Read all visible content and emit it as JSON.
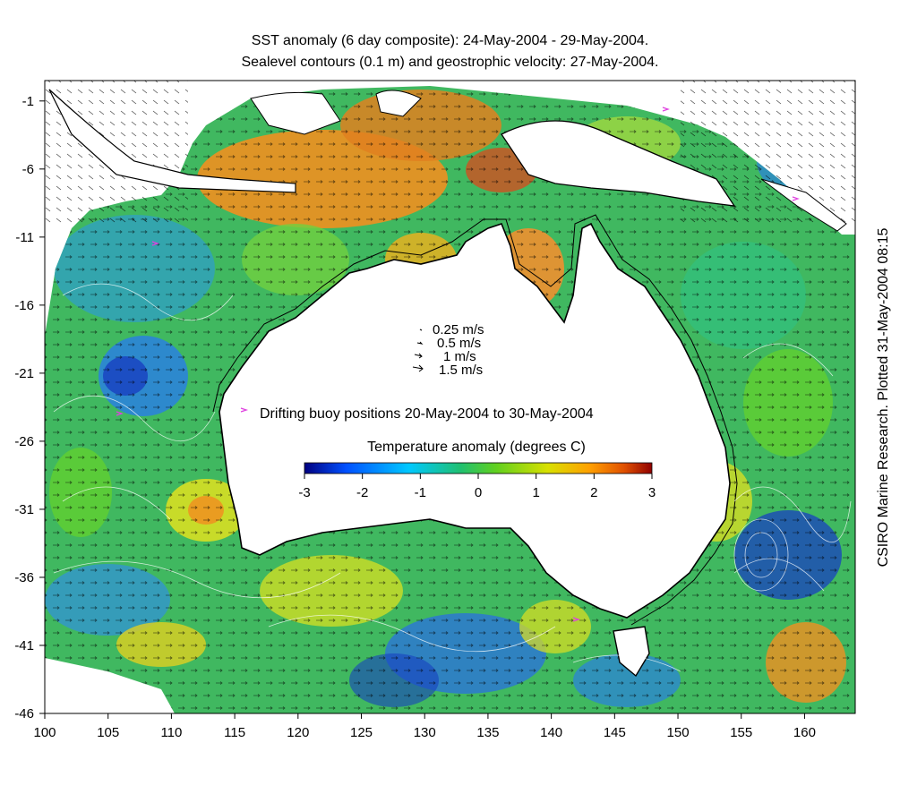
{
  "title_line1": "SST anomaly (6 day composite): 24-May-2004 - 29-May-2004.",
  "title_line2": "Sealevel contours (0.1 m) and geostrophic velocity: 27-May-2004.",
  "side_credit": "CSIRO Marine Research. Plotted 31-May-2004 08:15",
  "x_ticks": [
    "100",
    "105",
    "110",
    "115",
    "120",
    "125",
    "130",
    "135",
    "140",
    "145",
    "150",
    "155",
    "160"
  ],
  "y_ticks": [
    "-1",
    "-6",
    "-11",
    "-16",
    "-21",
    "-26",
    "-31",
    "-36",
    "-41",
    "-46"
  ],
  "x_tick_values": [
    100,
    105,
    110,
    115,
    120,
    125,
    130,
    135,
    140,
    145,
    150,
    155,
    160
  ],
  "y_tick_values": [
    -1,
    -6,
    -11,
    -16,
    -21,
    -26,
    -31,
    -36,
    -41,
    -46
  ],
  "lon_range": [
    100,
    164
  ],
  "lat_range": [
    -46,
    0.5
  ],
  "velocity_legend": [
    "0.25 m/s",
    "0.5 m/s",
    "1 m/s",
    "1.5 m/s"
  ],
  "buoy_label": "Drifting buoy positions 20-May-2004 to 30-May-2004",
  "buoy_color": "#e040e0",
  "colorbar": {
    "title": "Temperature anomaly (degrees C)",
    "ticks": [
      "-3",
      "-2",
      "-1",
      "0",
      "1",
      "2",
      "3"
    ],
    "tick_values": [
      -3,
      -2,
      -1,
      0,
      1,
      2,
      3
    ],
    "range": [
      -3,
      3
    ],
    "colors": [
      "#000080",
      "#0050ff",
      "#00c8ff",
      "#20c070",
      "#60d020",
      "#d8e000",
      "#ffa000",
      "#e05000",
      "#900000"
    ]
  },
  "ocean_colors": {
    "base": "#40b860",
    "cool": "#2a80e0",
    "deep_cool": "#1840c0",
    "warm": "#e0e020",
    "hot": "#f09020",
    "green": "#60d030"
  }
}
